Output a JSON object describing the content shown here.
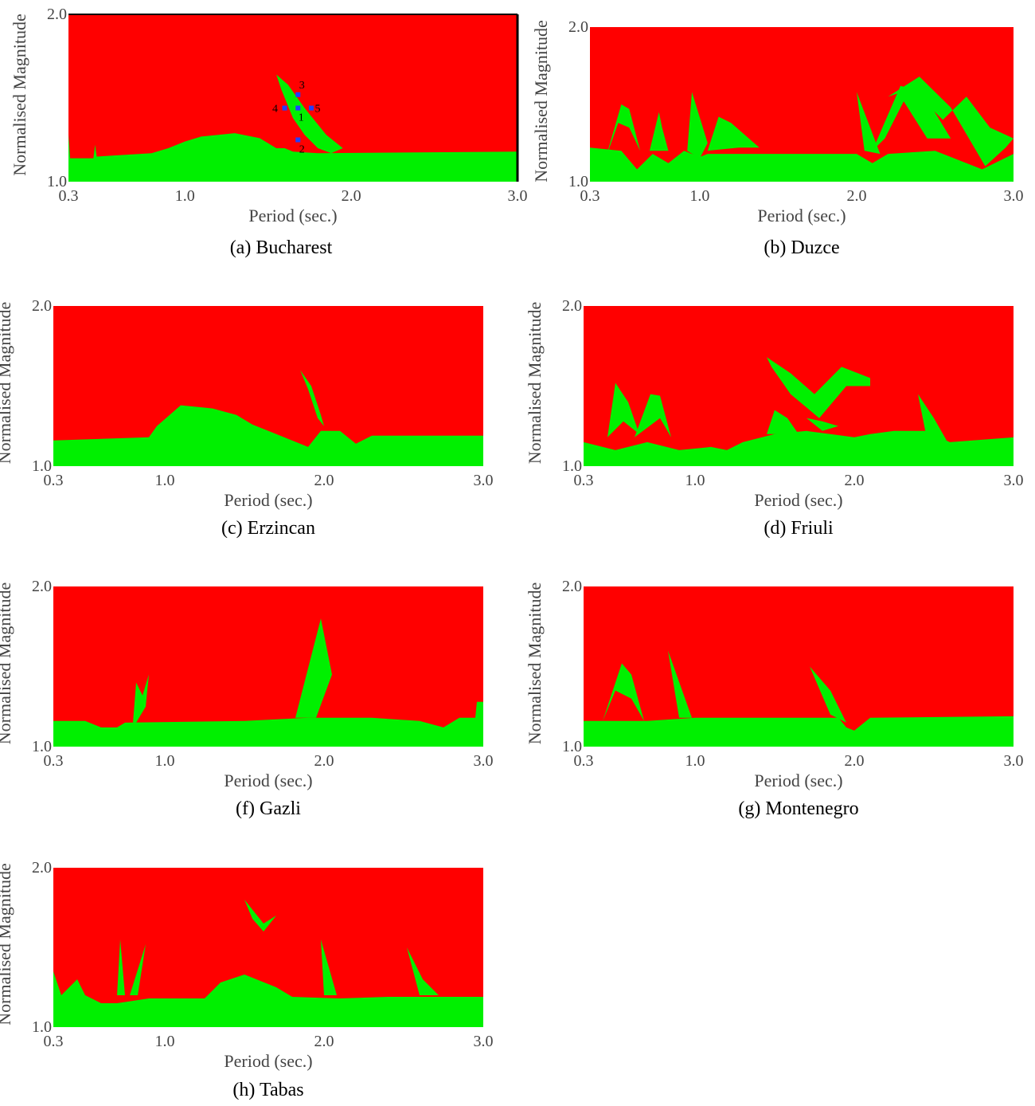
{
  "colors": {
    "stable": "#ff0000",
    "unstable": "#00f000",
    "marker": "#2040ff"
  },
  "chart_data": [
    {
      "type": "area",
      "caption": "(a) Bucharest",
      "xlabel": "Period (sec.)",
      "ylabel": "Normalised Magnitude",
      "xlim": [
        0.3,
        3.0
      ],
      "ylim": [
        1.0,
        2.0
      ],
      "xticks": [
        "0.3",
        "1.0",
        "2.0",
        "3.0"
      ],
      "yticks": [
        "1.0",
        "2.0"
      ],
      "baseline": [
        [
          0.3,
          1.28
        ],
        [
          0.31,
          1.14
        ],
        [
          0.45,
          1.14
        ],
        [
          0.46,
          1.22
        ],
        [
          0.47,
          1.15
        ],
        [
          0.8,
          1.17
        ],
        [
          0.9,
          1.2
        ],
        [
          1.0,
          1.24
        ],
        [
          1.1,
          1.27
        ],
        [
          1.3,
          1.29
        ],
        [
          1.45,
          1.26
        ],
        [
          1.55,
          1.2
        ],
        [
          1.6,
          1.2
        ],
        [
          1.65,
          1.18
        ],
        [
          1.8,
          1.17
        ],
        [
          3.0,
          1.18
        ]
      ],
      "regions": [
        [
          [
            1.55,
            1.64
          ],
          [
            1.62,
            1.58
          ],
          [
            1.72,
            1.44
          ],
          [
            1.85,
            1.28
          ],
          [
            1.95,
            1.2
          ],
          [
            1.88,
            1.17
          ],
          [
            1.8,
            1.2
          ],
          [
            1.72,
            1.28
          ],
          [
            1.65,
            1.38
          ],
          [
            1.58,
            1.55
          ]
        ]
      ],
      "points": [
        {
          "label": "1",
          "x": 1.68,
          "y": 1.44
        },
        {
          "label": "2",
          "x": 1.68,
          "y": 1.25
        },
        {
          "label": "3",
          "x": 1.68,
          "y": 1.52
        },
        {
          "label": "4",
          "x": 1.6,
          "y": 1.44
        },
        {
          "label": "5",
          "x": 1.76,
          "y": 1.44
        }
      ]
    },
    {
      "type": "area",
      "caption": "(b) Duzce",
      "xlabel": "Period (sec.)",
      "ylabel": "Normalised Magnitude",
      "xlim": [
        0.3,
        3.0
      ],
      "ylim": [
        1.0,
        2.0
      ],
      "xticks": [
        "0.3",
        "1.0",
        "2.0",
        "3.0"
      ],
      "yticks": [
        "1.0",
        "2.0"
      ],
      "baseline": [
        [
          0.3,
          1.22
        ],
        [
          0.5,
          1.2
        ],
        [
          0.6,
          1.08
        ],
        [
          0.7,
          1.18
        ],
        [
          0.8,
          1.12
        ],
        [
          0.9,
          1.2
        ],
        [
          1.0,
          1.16
        ],
        [
          1.05,
          1.18
        ],
        [
          1.5,
          1.18
        ],
        [
          2.0,
          1.18
        ],
        [
          2.1,
          1.12
        ],
        [
          2.2,
          1.18
        ],
        [
          2.5,
          1.2
        ],
        [
          2.8,
          1.08
        ],
        [
          3.0,
          1.18
        ]
      ],
      "regions": [
        [
          [
            0.4,
            1.15
          ],
          [
            0.5,
            1.5
          ],
          [
            0.55,
            1.47
          ],
          [
            0.62,
            1.2
          ],
          [
            0.55,
            1.35
          ],
          [
            0.48,
            1.38
          ]
        ],
        [
          [
            0.68,
            1.2
          ],
          [
            0.74,
            1.45
          ],
          [
            0.76,
            1.35
          ],
          [
            0.8,
            1.2
          ]
        ],
        [
          [
            0.92,
            1.2
          ],
          [
            0.95,
            1.58
          ],
          [
            1.05,
            1.25
          ],
          [
            1.0,
            1.15
          ]
        ],
        [
          [
            1.05,
            1.2
          ],
          [
            1.12,
            1.42
          ],
          [
            1.2,
            1.38
          ],
          [
            1.38,
            1.22
          ],
          [
            1.25,
            1.22
          ]
        ],
        [
          [
            2.0,
            1.58
          ],
          [
            2.15,
            1.18
          ],
          [
            2.05,
            1.2
          ]
        ],
        [
          [
            2.1,
            1.2
          ],
          [
            2.28,
            1.62
          ],
          [
            2.42,
            1.58
          ],
          [
            2.6,
            1.28
          ],
          [
            2.45,
            1.28
          ],
          [
            2.3,
            1.52
          ],
          [
            2.18,
            1.28
          ]
        ],
        [
          [
            2.2,
            1.55
          ],
          [
            2.4,
            1.68
          ],
          [
            2.6,
            1.48
          ],
          [
            2.82,
            1.1
          ],
          [
            2.95,
            1.22
          ],
          [
            3.0,
            1.28
          ],
          [
            2.85,
            1.35
          ],
          [
            2.7,
            1.55
          ],
          [
            2.55,
            1.4
          ],
          [
            2.35,
            1.6
          ]
        ]
      ],
      "points": []
    },
    {
      "type": "area",
      "caption": "(c) Erzincan",
      "xlabel": "Period (sec.)",
      "ylabel": "Normalised Magnitude",
      "xlim": [
        0.3,
        3.0
      ],
      "ylim": [
        1.0,
        2.0
      ],
      "xticks": [
        "0.3",
        "1.0",
        "2.0",
        "3.0"
      ],
      "yticks": [
        "1.0",
        "2.0"
      ],
      "baseline": [
        [
          0.3,
          1.16
        ],
        [
          0.9,
          1.18
        ],
        [
          0.95,
          1.25
        ],
        [
          1.1,
          1.38
        ],
        [
          1.3,
          1.36
        ],
        [
          1.45,
          1.32
        ],
        [
          1.55,
          1.26
        ],
        [
          1.7,
          1.2
        ],
        [
          1.9,
          1.12
        ],
        [
          1.98,
          1.22
        ],
        [
          2.1,
          1.22
        ],
        [
          2.2,
          1.14
        ],
        [
          2.3,
          1.19
        ],
        [
          3.0,
          1.19
        ]
      ],
      "regions": [
        [
          [
            1.85,
            1.6
          ],
          [
            1.92,
            1.5
          ],
          [
            1.98,
            1.32
          ],
          [
            2.0,
            1.25
          ],
          [
            1.96,
            1.3
          ],
          [
            1.9,
            1.48
          ]
        ]
      ],
      "points": []
    },
    {
      "type": "area",
      "caption": "(d) Friuli",
      "xlabel": "Period (sec.)",
      "ylabel": "Normalised Magnitude",
      "xlim": [
        0.3,
        3.0
      ],
      "ylim": [
        1.0,
        2.0
      ],
      "xticks": [
        "0.3",
        "1.0",
        "2.0",
        "3.0"
      ],
      "yticks": [
        "1.0",
        "2.0"
      ],
      "baseline": [
        [
          0.3,
          1.15
        ],
        [
          0.5,
          1.1
        ],
        [
          0.7,
          1.15
        ],
        [
          0.9,
          1.1
        ],
        [
          1.1,
          1.12
        ],
        [
          1.2,
          1.1
        ],
        [
          1.3,
          1.15
        ],
        [
          1.5,
          1.2
        ],
        [
          1.7,
          1.22
        ],
        [
          1.85,
          1.2
        ],
        [
          2.0,
          1.18
        ],
        [
          2.1,
          1.2
        ],
        [
          2.25,
          1.22
        ],
        [
          2.45,
          1.22
        ],
        [
          2.6,
          1.15
        ],
        [
          3.0,
          1.18
        ]
      ],
      "regions": [
        [
          [
            0.45,
            1.18
          ],
          [
            0.5,
            1.52
          ],
          [
            0.58,
            1.4
          ],
          [
            0.65,
            1.2
          ],
          [
            0.55,
            1.28
          ]
        ],
        [
          [
            0.62,
            1.18
          ],
          [
            0.72,
            1.45
          ],
          [
            0.78,
            1.44
          ],
          [
            0.85,
            1.18
          ],
          [
            0.78,
            1.3
          ]
        ],
        [
          [
            1.45,
            1.68
          ],
          [
            1.6,
            1.58
          ],
          [
            1.75,
            1.45
          ],
          [
            1.92,
            1.62
          ],
          [
            2.1,
            1.55
          ],
          [
            2.1,
            1.5
          ],
          [
            1.95,
            1.5
          ],
          [
            1.78,
            1.3
          ],
          [
            1.6,
            1.45
          ],
          [
            1.48,
            1.62
          ]
        ],
        [
          [
            1.45,
            1.2
          ],
          [
            1.5,
            1.35
          ],
          [
            1.58,
            1.3
          ],
          [
            1.65,
            1.2
          ]
        ],
        [
          [
            1.7,
            1.3
          ],
          [
            1.8,
            1.28
          ],
          [
            1.9,
            1.25
          ],
          [
            1.8,
            1.22
          ]
        ],
        [
          [
            2.4,
            1.45
          ],
          [
            2.5,
            1.3
          ],
          [
            2.58,
            1.16
          ],
          [
            2.45,
            1.2
          ]
        ]
      ],
      "points": []
    },
    {
      "type": "area",
      "caption": "(f) Gazli",
      "xlabel": "Period (sec.)",
      "ylabel": "Normalised Magnitude",
      "xlim": [
        0.3,
        3.0
      ],
      "ylim": [
        1.0,
        2.0
      ],
      "xticks": [
        "0.3",
        "1.0",
        "2.0",
        "3.0"
      ],
      "yticks": [
        "1.0",
        "2.0"
      ],
      "baseline": [
        [
          0.3,
          1.16
        ],
        [
          0.5,
          1.16
        ],
        [
          0.6,
          1.12
        ],
        [
          0.7,
          1.12
        ],
        [
          0.75,
          1.15
        ],
        [
          1.5,
          1.16
        ],
        [
          1.9,
          1.18
        ],
        [
          2.3,
          1.18
        ],
        [
          2.6,
          1.16
        ],
        [
          2.75,
          1.12
        ],
        [
          2.85,
          1.18
        ],
        [
          2.95,
          1.18
        ],
        [
          2.96,
          1.28
        ],
        [
          3.0,
          1.28
        ]
      ],
      "regions": [
        [
          [
            0.8,
            1.15
          ],
          [
            0.82,
            1.4
          ],
          [
            0.86,
            1.32
          ],
          [
            0.9,
            1.45
          ],
          [
            0.88,
            1.25
          ],
          [
            0.82,
            1.15
          ]
        ],
        [
          [
            1.82,
            1.18
          ],
          [
            1.98,
            1.8
          ],
          [
            2.05,
            1.45
          ],
          [
            1.95,
            1.18
          ]
        ]
      ],
      "points": []
    },
    {
      "type": "area",
      "caption": "(g) Montenegro",
      "xlabel": "Period (sec.)",
      "ylabel": "Normalised Magnitude",
      "xlim": [
        0.3,
        3.0
      ],
      "ylim": [
        1.0,
        2.0
      ],
      "xticks": [
        "0.3",
        "1.0",
        "2.0",
        "3.0"
      ],
      "yticks": [
        "1.0",
        "2.0"
      ],
      "baseline": [
        [
          0.3,
          1.16
        ],
        [
          0.7,
          1.16
        ],
        [
          1.0,
          1.18
        ],
        [
          1.5,
          1.18
        ],
        [
          1.9,
          1.18
        ],
        [
          1.95,
          1.12
        ],
        [
          2.0,
          1.1
        ],
        [
          2.1,
          1.18
        ],
        [
          3.0,
          1.19
        ]
      ],
      "regions": [
        [
          [
            0.42,
            1.16
          ],
          [
            0.54,
            1.52
          ],
          [
            0.6,
            1.45
          ],
          [
            0.68,
            1.16
          ],
          [
            0.6,
            1.3
          ],
          [
            0.5,
            1.35
          ]
        ],
        [
          [
            0.83,
            1.6
          ],
          [
            0.98,
            1.18
          ],
          [
            0.9,
            1.18
          ]
        ],
        [
          [
            1.72,
            1.5
          ],
          [
            1.85,
            1.35
          ],
          [
            1.95,
            1.15
          ],
          [
            1.85,
            1.2
          ]
        ]
      ],
      "points": []
    },
    {
      "type": "area",
      "caption": "(h) Tabas",
      "xlabel": "Period (sec.)",
      "ylabel": "Normalised Magnitude",
      "xlim": [
        0.3,
        3.0
      ],
      "ylim": [
        1.0,
        2.0
      ],
      "xticks": [
        "0.3",
        "1.0",
        "2.0",
        "3.0"
      ],
      "yticks": [
        "1.0",
        "2.0"
      ],
      "baseline": [
        [
          0.3,
          1.35
        ],
        [
          0.35,
          1.2
        ],
        [
          0.45,
          1.3
        ],
        [
          0.5,
          1.2
        ],
        [
          0.6,
          1.15
        ],
        [
          0.7,
          1.15
        ],
        [
          0.9,
          1.18
        ],
        [
          1.25,
          1.18
        ],
        [
          1.35,
          1.28
        ],
        [
          1.5,
          1.33
        ],
        [
          1.7,
          1.25
        ],
        [
          1.8,
          1.19
        ],
        [
          2.1,
          1.18
        ],
        [
          2.4,
          1.19
        ],
        [
          3.0,
          1.19
        ]
      ],
      "regions": [
        [
          [
            0.7,
            1.2
          ],
          [
            0.72,
            1.55
          ],
          [
            0.75,
            1.2
          ]
        ],
        [
          [
            0.78,
            1.2
          ],
          [
            0.88,
            1.52
          ],
          [
            0.83,
            1.2
          ]
        ],
        [
          [
            1.5,
            1.8
          ],
          [
            1.62,
            1.65
          ],
          [
            1.7,
            1.7
          ],
          [
            1.62,
            1.6
          ],
          [
            1.55,
            1.68
          ]
        ],
        [
          [
            1.98,
            1.55
          ],
          [
            2.08,
            1.2
          ],
          [
            2.0,
            1.2
          ]
        ],
        [
          [
            2.52,
            1.5
          ],
          [
            2.62,
            1.3
          ],
          [
            2.72,
            1.2
          ],
          [
            2.6,
            1.2
          ]
        ]
      ],
      "points": []
    }
  ]
}
